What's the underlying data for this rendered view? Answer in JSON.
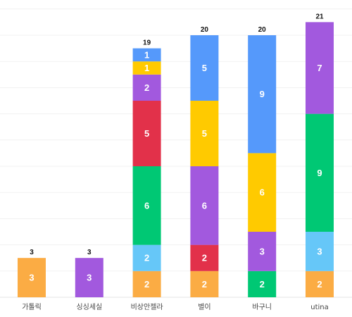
{
  "chart_data": {
    "type": "bar",
    "stacked": true,
    "categories": [
      "가톨릭",
      "싱싱세실",
      "비상안젤라",
      "별이",
      "바구니",
      "utina"
    ],
    "ylim": [
      0,
      22
    ],
    "grid": true,
    "series": [
      {
        "color": "#fbac44",
        "values": [
          3,
          0,
          2,
          2,
          0,
          2
        ]
      },
      {
        "color": "#66c7f8",
        "values": [
          0,
          0,
          2,
          0,
          0,
          3
        ]
      },
      {
        "color": "#00c874",
        "values": [
          0,
          0,
          6,
          0,
          2,
          9
        ]
      },
      {
        "color": "#e2314a",
        "values": [
          0,
          0,
          5,
          2,
          0,
          0
        ]
      },
      {
        "color": "#a259de",
        "values": [
          0,
          3,
          2,
          6,
          3,
          7
        ]
      },
      {
        "color": "#ffca00",
        "values": [
          0,
          0,
          1,
          5,
          6,
          0
        ]
      },
      {
        "color": "#5599fb",
        "values": [
          0,
          0,
          1,
          5,
          9,
          0
        ]
      }
    ],
    "totals": [
      3,
      3,
      19,
      20,
      20,
      21
    ]
  }
}
